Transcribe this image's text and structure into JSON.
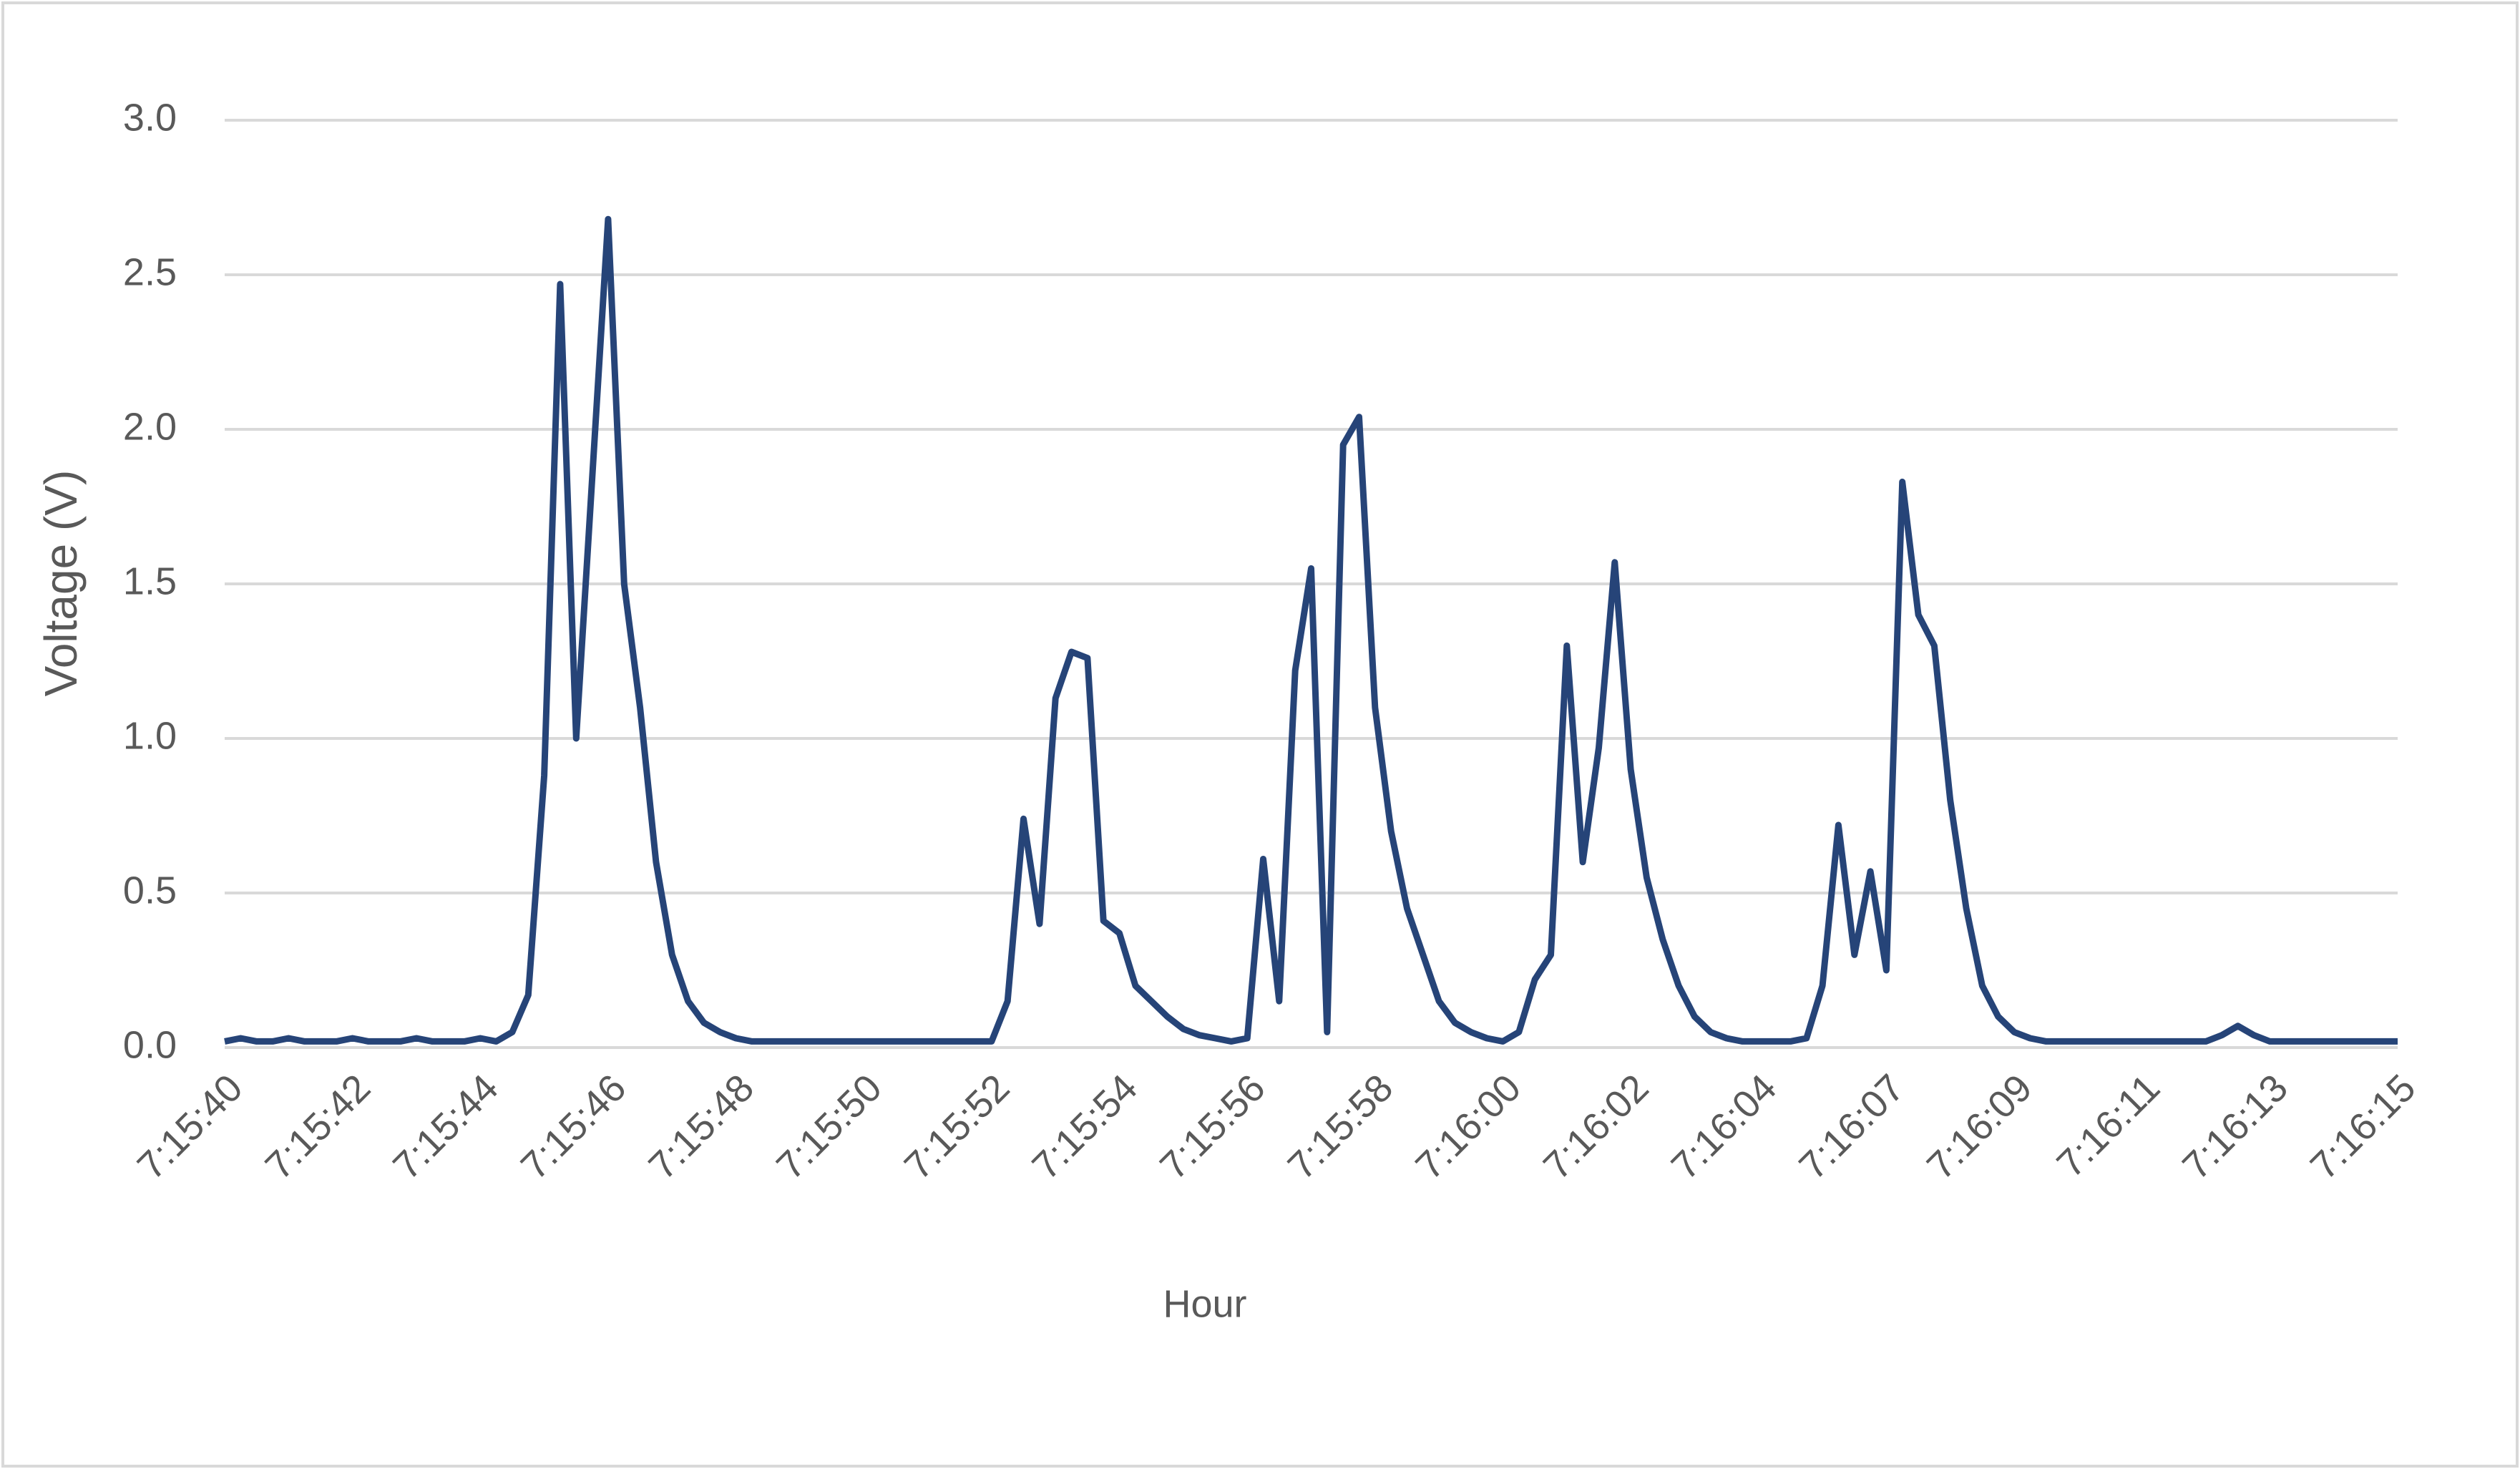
{
  "chart_data": {
    "type": "line",
    "x_label": "Hour",
    "y_label": "Voltage (V)",
    "categories": [
      "7:15:40",
      null,
      null,
      null,
      null,
      null,
      null,
      null,
      "7:15:42",
      null,
      null,
      null,
      null,
      null,
      null,
      null,
      "7:15:44",
      null,
      null,
      null,
      null,
      null,
      null,
      null,
      "7:15:46",
      null,
      null,
      null,
      null,
      null,
      null,
      null,
      "7:15:48",
      null,
      null,
      null,
      null,
      null,
      null,
      null,
      "7:15:50",
      null,
      null,
      null,
      null,
      null,
      null,
      null,
      "7:15:52",
      null,
      null,
      null,
      null,
      null,
      null,
      null,
      "7:15:54",
      null,
      null,
      null,
      null,
      null,
      null,
      null,
      "7:15:56",
      null,
      null,
      null,
      null,
      null,
      null,
      null,
      "7:15:58",
      null,
      null,
      null,
      null,
      null,
      null,
      null,
      "7:16:00",
      null,
      null,
      null,
      null,
      null,
      null,
      null,
      "7:16:02",
      null,
      null,
      null,
      null,
      null,
      null,
      null,
      "7:16:04",
      null,
      null,
      null,
      null,
      null,
      null,
      null,
      "7:16:07",
      null,
      null,
      null,
      null,
      null,
      null,
      null,
      "7:16:09",
      null,
      null,
      null,
      null,
      null,
      null,
      null,
      "7:16:11",
      null,
      null,
      null,
      null,
      null,
      null,
      null,
      "7:16:13",
      null,
      null,
      null,
      null,
      null,
      null,
      null,
      "7:16:15"
    ],
    "values": [
      0.02,
      0.03,
      0.02,
      0.02,
      0.03,
      0.02,
      0.02,
      0.02,
      0.03,
      0.02,
      0.02,
      0.02,
      0.03,
      0.02,
      0.02,
      0.02,
      0.03,
      0.02,
      0.05,
      0.17,
      0.88,
      2.47,
      1.0,
      1.84,
      2.68,
      1.5,
      1.1,
      0.6,
      0.3,
      0.15,
      0.08,
      0.05,
      0.03,
      0.02,
      0.02,
      0.02,
      0.02,
      0.02,
      0.02,
      0.02,
      0.02,
      0.02,
      0.02,
      0.02,
      0.02,
      0.02,
      0.02,
      0.02,
      0.02,
      0.15,
      0.74,
      0.4,
      1.13,
      1.28,
      1.26,
      0.41,
      0.37,
      0.2,
      0.15,
      0.1,
      0.06,
      0.04,
      0.03,
      0.02,
      0.03,
      0.61,
      0.15,
      1.22,
      1.55,
      0.05,
      1.95,
      2.04,
      1.1,
      0.7,
      0.45,
      0.3,
      0.15,
      0.08,
      0.05,
      0.03,
      0.02,
      0.05,
      0.22,
      0.3,
      1.3,
      0.6,
      0.97,
      1.57,
      0.9,
      0.55,
      0.35,
      0.2,
      0.1,
      0.05,
      0.03,
      0.02,
      0.02,
      0.02,
      0.02,
      0.03,
      0.2,
      0.72,
      0.3,
      0.57,
      0.25,
      1.83,
      1.4,
      1.3,
      0.8,
      0.45,
      0.2,
      0.1,
      0.05,
      0.03,
      0.02,
      0.02,
      0.02,
      0.02,
      0.02,
      0.02,
      0.02,
      0.02,
      0.02,
      0.02,
      0.02,
      0.04,
      0.07,
      0.04,
      0.02,
      0.02,
      0.02,
      0.02,
      0.02,
      0.02,
      0.02,
      0.02,
      0.02
    ],
    "color": "#264478",
    "ylim": [
      0,
      3
    ],
    "yticks": [
      {
        "value": 0,
        "label": "0.0"
      },
      0.5,
      {
        "value": 1,
        "label": "1.0"
      },
      1.5,
      {
        "value": 2,
        "label": "2.0"
      },
      2.5,
      {
        "value": 3,
        "label": "3.0"
      }
    ],
    "grid": true
  }
}
